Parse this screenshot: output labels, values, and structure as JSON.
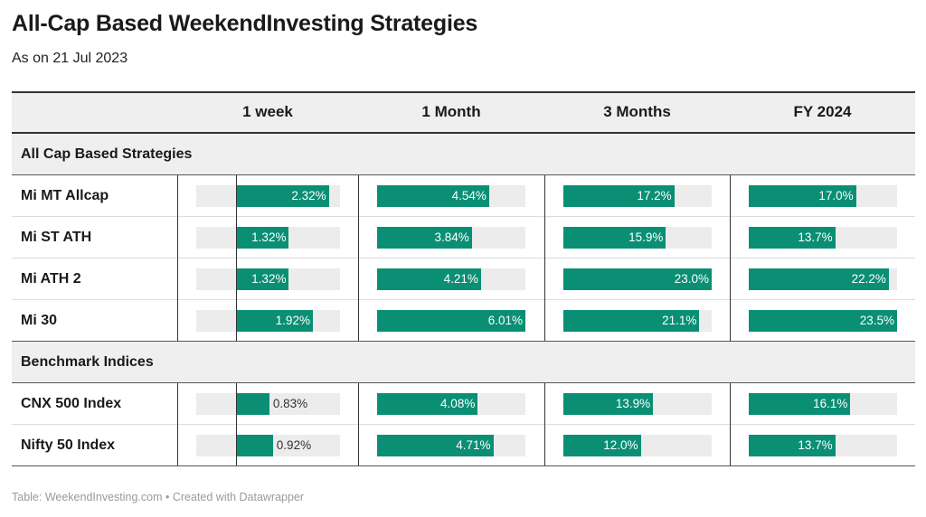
{
  "title": "All-Cap Based WeekendInvesting Strategies",
  "subtitle": "As on 21 Jul 2023",
  "footer": "Table: WeekendInvesting.com • Created with Datawrapper",
  "colors": {
    "bar": "#0a8f74",
    "track": "#ececec",
    "header_bg": "#efefef"
  },
  "chart_data": {
    "type": "table",
    "columns": [
      "1 week",
      "1 Month",
      "3 Months",
      "FY 2024"
    ],
    "groups": [
      {
        "label": "All Cap Based Strategies",
        "rows": [
          {
            "name": "Mi MT Allcap",
            "values": [
              2.32,
              4.54,
              17.2,
              17.0
            ],
            "labels": [
              "2.32%",
              "4.54%",
              "17.2%",
              "17.0%"
            ]
          },
          {
            "name": "Mi ST ATH",
            "values": [
              1.32,
              3.84,
              15.9,
              13.7
            ],
            "labels": [
              "1.32%",
              "3.84%",
              "15.9%",
              "13.7%"
            ]
          },
          {
            "name": "Mi ATH 2",
            "values": [
              1.32,
              4.21,
              23.0,
              22.2
            ],
            "labels": [
              "1.32%",
              "4.21%",
              "23.0%",
              "22.2%"
            ]
          },
          {
            "name": "Mi 30",
            "values": [
              1.92,
              6.01,
              21.1,
              23.5
            ],
            "labels": [
              "1.92%",
              "6.01%",
              "21.1%",
              "23.5%"
            ]
          }
        ]
      },
      {
        "label": "Benchmark Indices",
        "rows": [
          {
            "name": "CNX 500 Index",
            "values": [
              0.83,
              4.08,
              13.9,
              16.1
            ],
            "labels": [
              "0.83%",
              "4.08%",
              "13.9%",
              "16.1%"
            ]
          },
          {
            "name": "Nifty 50 Index",
            "values": [
              0.92,
              4.71,
              12.0,
              13.7
            ],
            "labels": [
              "0.92%",
              "4.71%",
              "12.0%",
              "13.7%"
            ]
          }
        ]
      }
    ],
    "column_ranges": [
      [
        -1,
        2.6
      ],
      [
        0,
        6.01
      ],
      [
        0,
        23.0
      ],
      [
        0,
        23.5
      ]
    ]
  }
}
